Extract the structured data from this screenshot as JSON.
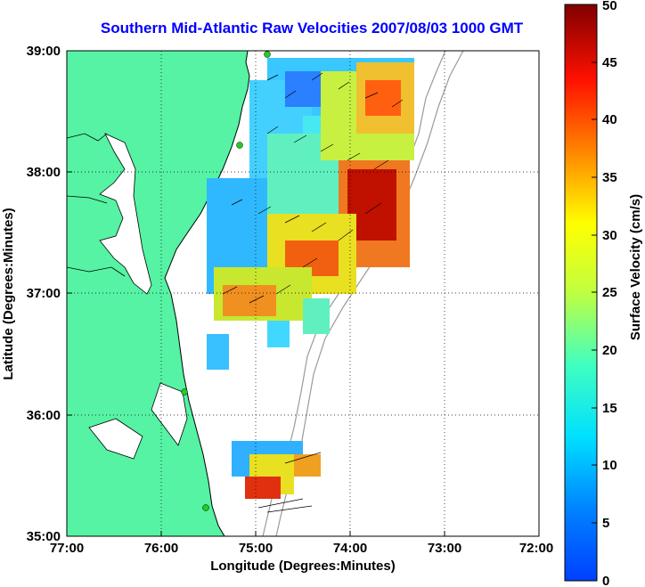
{
  "title": "Southern Mid-Atlantic Raw Velocities 2007/08/03 1000 GMT",
  "xlabel": "Longitude (Degrees:Minutes)",
  "ylabel": "Latitude (Degrees:Minutes)",
  "xticks": [
    "77:00",
    "76:00",
    "75:00",
    "74:00",
    "73:00",
    "72:00"
  ],
  "yticks": [
    "39:00",
    "38:00",
    "37:00",
    "36:00",
    "35:00"
  ],
  "colorbar": {
    "label": "Surface Velocity (cm/s)",
    "ticks": [
      "50",
      "45",
      "40",
      "35",
      "30",
      "25",
      "20",
      "15",
      "10",
      "5",
      "0"
    ],
    "min": 0,
    "max": 50,
    "colormap": "jet"
  },
  "colors": {
    "land": "#55f3a3",
    "title": "#0000ff",
    "bathymetry": "#9a9a9a",
    "station": "#22cc22"
  },
  "map": {
    "lon_range": [
      -77,
      -72
    ],
    "lat_range": [
      35,
      39
    ],
    "grid": true
  }
}
